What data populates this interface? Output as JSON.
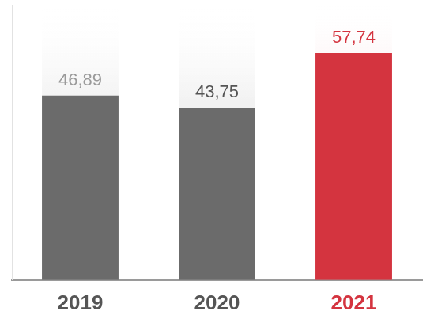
{
  "chart_data": {
    "type": "bar",
    "categories": [
      "2019",
      "2020",
      "2021"
    ],
    "values": [
      46.89,
      43.75,
      57.74
    ],
    "value_labels": [
      "46,89",
      "43,75",
      "57,74"
    ],
    "colors": [
      "#6b6b6b",
      "#6b6b6b",
      "#d4343f"
    ],
    "ylim": [
      0,
      70
    ],
    "grid": false,
    "data_labels": true,
    "tick_labels": "x"
  }
}
